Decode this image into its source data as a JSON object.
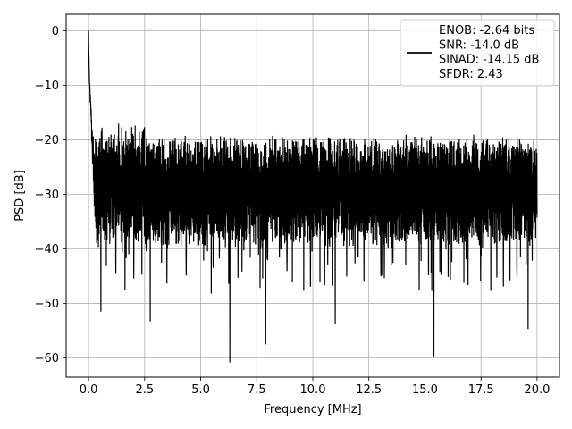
{
  "chart_data": {
    "type": "line",
    "title": "",
    "xlabel": "Frequency [MHz]",
    "ylabel": "PSD [dB]",
    "xlim": [
      -1.0,
      21.0
    ],
    "ylim": [
      -63.5,
      3.0
    ],
    "xticks": [
      0.0,
      2.5,
      5.0,
      7.5,
      10.0,
      12.5,
      15.0,
      17.5,
      20.0
    ],
    "xtick_labels": [
      "0.0",
      "2.5",
      "5.0",
      "7.5",
      "10.0",
      "12.5",
      "15.0",
      "17.5",
      "20.0"
    ],
    "yticks": [
      0,
      -10,
      -20,
      -30,
      -40,
      -50,
      -60
    ],
    "ytick_labels": [
      "0",
      "−10",
      "−20",
      "−30",
      "−40",
      "−50",
      "−60"
    ],
    "grid": true,
    "legend": {
      "placement": "top-right",
      "lines": [
        "ENOB: -2.64 bits",
        "SNR: -14.0 dB",
        "SINAD: -14.15 dB",
        "SFDR: 2.43"
      ]
    },
    "series": [
      {
        "color": "#000000",
        "x_range": [
          0.0,
          20.0
        ],
        "peak": {
          "x": 0.0,
          "y": 0
        },
        "floor_mean_db": -26,
        "floor_typical_min_db": -35,
        "floor_typical_max_db": -20,
        "notable_dips": [
          {
            "x": 0.55,
            "y": -51.5
          },
          {
            "x": 2.75,
            "y": -53.3
          },
          {
            "x": 6.3,
            "y": -60.8
          },
          {
            "x": 7.9,
            "y": -57.5
          },
          {
            "x": 11.0,
            "y": -53.8
          },
          {
            "x": 15.4,
            "y": -59.7
          },
          {
            "x": 19.6,
            "y": -54.7
          }
        ]
      }
    ]
  }
}
